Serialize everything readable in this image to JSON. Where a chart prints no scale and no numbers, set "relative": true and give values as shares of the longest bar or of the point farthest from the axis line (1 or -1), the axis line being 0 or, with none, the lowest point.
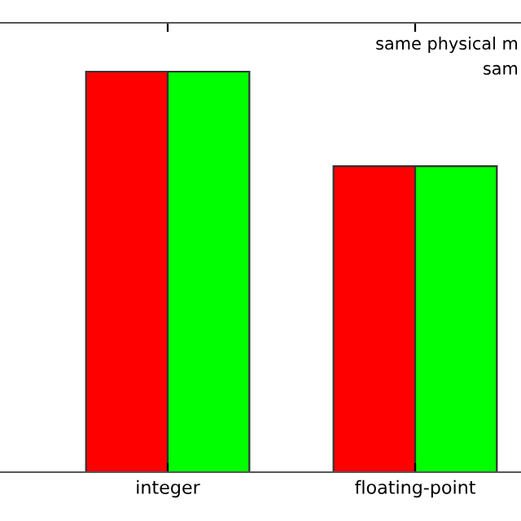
{
  "chart_data": {
    "type": "bar",
    "relative": true,
    "categories": [
      "integer",
      "floating-point"
    ],
    "series": [
      {
        "color": "#ff0000",
        "values": [
          1,
          0.764
        ]
      },
      {
        "color": "#00ff00",
        "values": [
          1,
          0.764
        ]
      }
    ],
    "annotations": [
      "same physical m",
      "sam"
    ],
    "grid": false,
    "legend": false
  }
}
